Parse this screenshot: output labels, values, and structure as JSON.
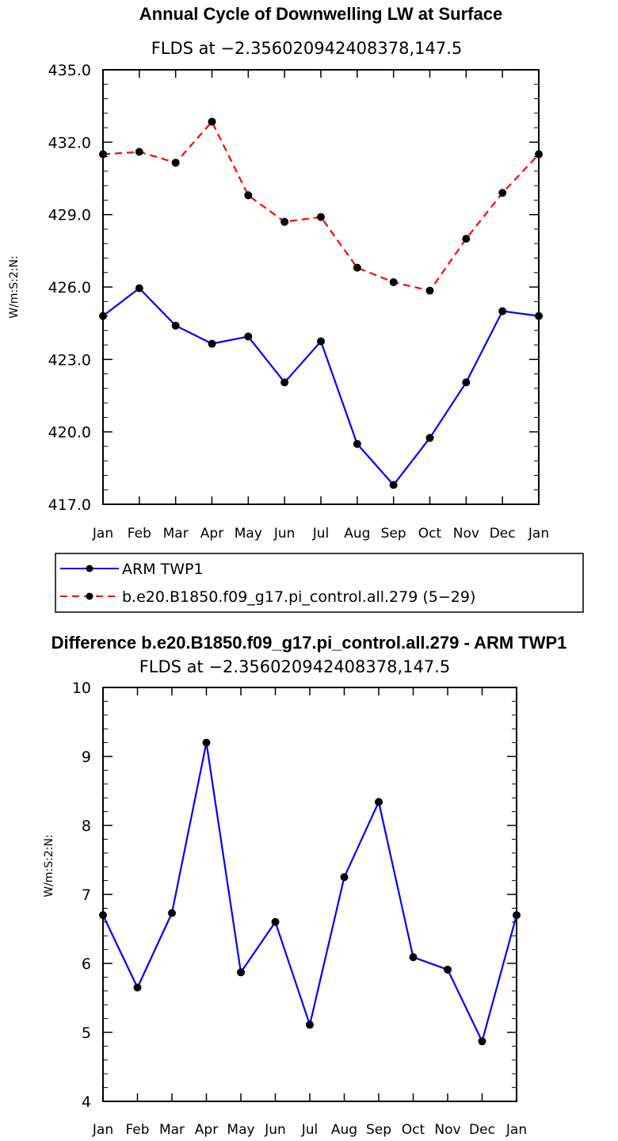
{
  "chart_data": [
    {
      "type": "line",
      "title": "Annual Cycle of Downwelling LW at Surface",
      "subtitle": "FLDS at −2.356020942408378,147.5",
      "ylabel": "W/m:S:2:N:",
      "xlabel": "",
      "categories": [
        "Jan",
        "Feb",
        "Mar",
        "Apr",
        "May",
        "Jun",
        "Jul",
        "Aug",
        "Sep",
        "Oct",
        "Nov",
        "Dec",
        "Jan"
      ],
      "ylim": [
        417.0,
        435.0
      ],
      "yticks": [
        "417.0",
        "420.0",
        "423.0",
        "426.0",
        "429.0",
        "432.0",
        "435.0"
      ],
      "series": [
        {
          "name": "ARM TWP1",
          "color": "#0000ff",
          "dash": "solid",
          "values": [
            424.8,
            425.95,
            424.4,
            423.65,
            423.95,
            422.05,
            423.75,
            419.5,
            417.8,
            419.75,
            422.05,
            425.0,
            424.8
          ]
        },
        {
          "name": "b.e20.B1850.f09_g17.pi_control.all.279 (5−29)",
          "color": "#ff0000",
          "dash": "dashed",
          "values": [
            431.5,
            431.6,
            431.15,
            432.85,
            429.8,
            428.7,
            428.9,
            426.8,
            426.2,
            425.85,
            428.0,
            429.9,
            431.5
          ]
        }
      ],
      "legend": "bottom"
    },
    {
      "type": "line",
      "title": "Difference b.e20.B1850.f09_g17.pi_control.all.279 - ARM TWP1",
      "subtitle": "FLDS at −2.356020942408378,147.5",
      "ylabel": "W/m:S:2:N:",
      "xlabel": "",
      "categories": [
        "Jan",
        "Feb",
        "Mar",
        "Apr",
        "May",
        "Jun",
        "Jul",
        "Aug",
        "Sep",
        "Oct",
        "Nov",
        "Dec",
        "Jan"
      ],
      "ylim": [
        4,
        10
      ],
      "yticks": [
        "4",
        "5",
        "6",
        "7",
        "8",
        "9",
        "10"
      ],
      "series": [
        {
          "name": "Difference",
          "color": "#0000ff",
          "dash": "solid",
          "values": [
            6.7,
            5.65,
            6.73,
            9.2,
            5.87,
            6.6,
            5.11,
            7.25,
            8.34,
            6.09,
            5.91,
            4.87,
            6.7
          ]
        }
      ]
    }
  ]
}
